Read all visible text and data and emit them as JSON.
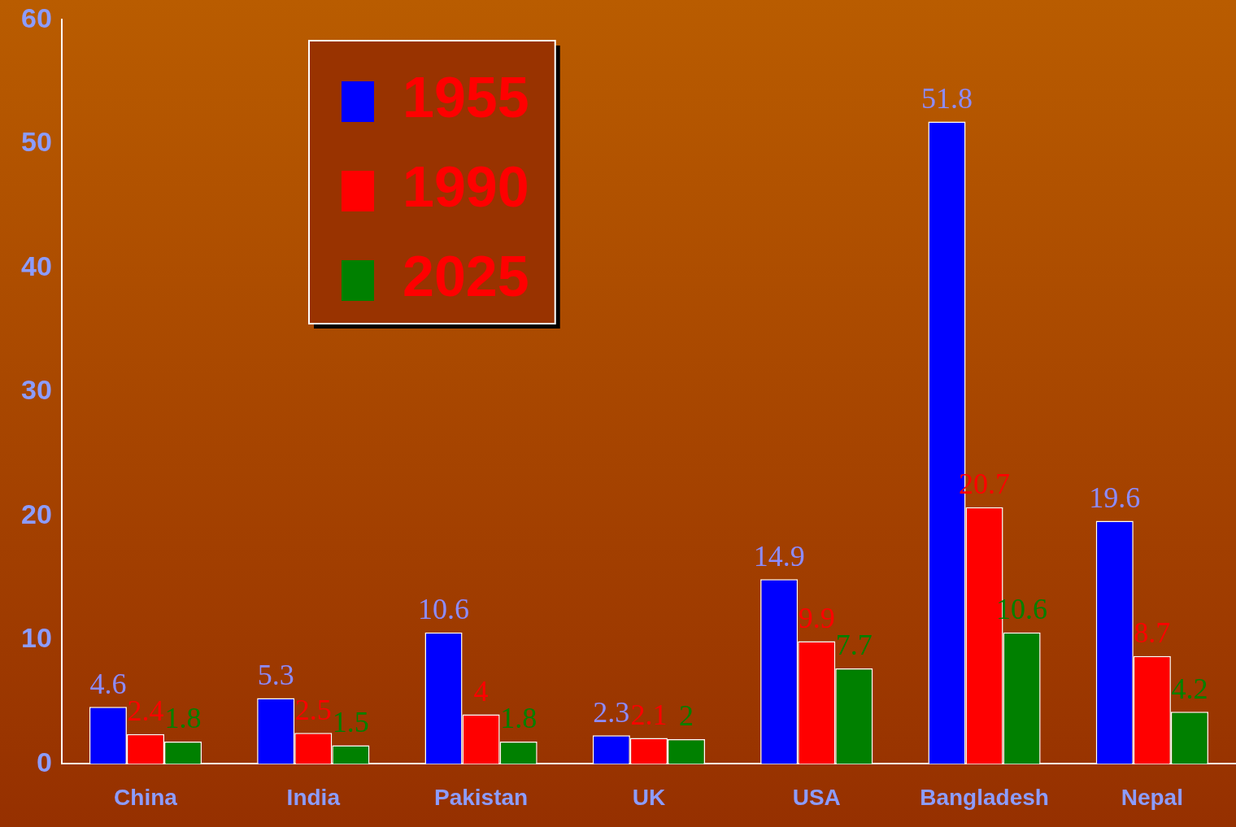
{
  "chart_data": {
    "type": "bar",
    "categories": [
      "China",
      "India",
      "Pakistan",
      "UK",
      "USA",
      "Bangladesh",
      "Nepal"
    ],
    "series": [
      {
        "name": "1955",
        "color": "#0000ff",
        "values": [
          4.6,
          5.3,
          10.6,
          2.3,
          14.9,
          51.8,
          19.6
        ]
      },
      {
        "name": "1990",
        "color": "#ff0000",
        "values": [
          2.4,
          2.5,
          4,
          2.1,
          9.9,
          20.7,
          8.7
        ]
      },
      {
        "name": "2025",
        "color": "#008000",
        "values": [
          1.8,
          1.5,
          1.8,
          2,
          7.7,
          10.6,
          4.2
        ]
      }
    ],
    "ylim": [
      0,
      60
    ],
    "yticks": [
      0,
      10,
      20,
      30,
      40,
      50,
      60
    ],
    "data_labels": true,
    "legend": "top left"
  }
}
